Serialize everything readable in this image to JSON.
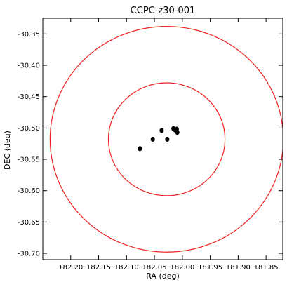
{
  "chart_data": {
    "type": "scatter",
    "title": "CCPC-z30-001",
    "xlabel": "RA (deg)",
    "ylabel": "DEC (deg)",
    "xlim": [
      182.25,
      181.82
    ],
    "ylim": [
      -30.71,
      -30.325
    ],
    "x_ticks": [
      182.2,
      182.15,
      182.1,
      182.05,
      182.0,
      181.95,
      181.9,
      181.85
    ],
    "x_tick_labels": [
      "182.20",
      "182.15",
      "182.10",
      "182.05",
      "182.00",
      "181.95",
      "181.90",
      "181.85"
    ],
    "y_ticks": [
      -30.35,
      -30.4,
      -30.45,
      -30.5,
      -30.55,
      -30.6,
      -30.65,
      -30.7
    ],
    "y_tick_labels": [
      "-30.35",
      "-30.40",
      "-30.45",
      "-30.50",
      "-30.55",
      "-30.60",
      "-30.65",
      "-30.70"
    ],
    "grid": false,
    "series": [
      {
        "marker": "circle",
        "color": "#000000",
        "points": [
          {
            "x": 182.076,
            "y": -30.533
          },
          {
            "x": 182.053,
            "y": -30.518
          },
          {
            "x": 182.037,
            "y": -30.504
          },
          {
            "x": 182.027,
            "y": -30.518
          },
          {
            "x": 182.016,
            "y": -30.501
          },
          {
            "x": 182.013,
            "y": -30.503
          },
          {
            "x": 182.01,
            "y": -30.502
          },
          {
            "x": 182.009,
            "y": -30.507
          }
        ]
      }
    ],
    "circles": [
      {
        "center_x": 182.028,
        "center_y": -30.518,
        "radius_dec": 0.09,
        "color": "#ee2222"
      },
      {
        "center_x": 182.028,
        "center_y": -30.518,
        "radius_dec": 0.18,
        "color": "#ee2222"
      }
    ]
  }
}
